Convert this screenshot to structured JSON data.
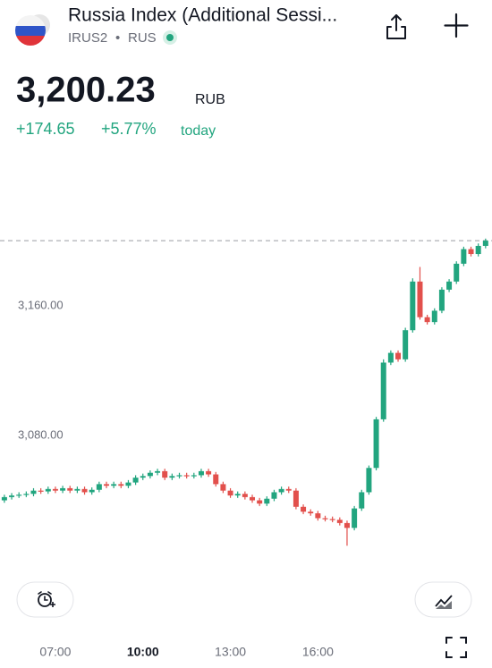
{
  "header": {
    "title": "Russia Index (Additional Sessi...",
    "symbol": "IRUS2",
    "separator": "•",
    "exchange": "RUS"
  },
  "quote": {
    "price": "3,200.23",
    "currency": "RUB",
    "change": "+174.65",
    "change_percent": "+5.77%",
    "period": "today"
  },
  "chart_data": {
    "type": "candlestick",
    "up_color": "#22a57f",
    "down_color": "#e2504c",
    "xlim": [
      5.1,
      21.97
    ],
    "ylim": [
      2995.6,
      3249.4
    ],
    "yticks": [
      {
        "value": 3160,
        "label": "3,160.00"
      },
      {
        "value": 3080,
        "label": "3,080.00"
      }
    ],
    "xticks": [
      {
        "value": 7,
        "label": "07:00"
      },
      {
        "value": 10,
        "label": "10:00"
      },
      {
        "value": 13,
        "label": "13:00"
      },
      {
        "value": 16,
        "label": "16:00"
      }
    ],
    "x": [
      5.25,
      5.5,
      5.75,
      6,
      6.25,
      6.5,
      6.75,
      7,
      7.25,
      7.5,
      7.75,
      8,
      8.25,
      8.5,
      8.75,
      9,
      9.25,
      9.5,
      9.75,
      10,
      10.25,
      10.5,
      10.75,
      11,
      11.25,
      11.5,
      11.75,
      12,
      12.25,
      12.5,
      12.75,
      13,
      13.25,
      13.5,
      13.75,
      14,
      14.25,
      14.5,
      14.75,
      15,
      15.25,
      15.5,
      15.75,
      16,
      16.25,
      16.5,
      16.75,
      17,
      17.25,
      17.5,
      17.75,
      18,
      18.25,
      18.5,
      18.75,
      19,
      19.25,
      19.5,
      19.75,
      20,
      20.25,
      20.5,
      20.75,
      21,
      21.25,
      21.5,
      21.75
    ],
    "open": [
      3040,
      3042,
      3043,
      3043.5,
      3044,
      3046,
      3045.5,
      3047,
      3046,
      3047.5,
      3046,
      3047,
      3045,
      3046.5,
      3050,
      3049,
      3050,
      3049,
      3051,
      3054,
      3055,
      3057,
      3058,
      3054,
      3055,
      3055.5,
      3055,
      3055.5,
      3058,
      3056,
      3050,
      3046,
      3043,
      3044,
      3042,
      3040,
      3038,
      3041,
      3045,
      3047,
      3046,
      3036,
      3033,
      3032,
      3029,
      3028.5,
      3028,
      3026,
      3023,
      3035,
      3045,
      3060,
      3090,
      3125,
      3131,
      3127,
      3145,
      3175,
      3153,
      3150,
      3157,
      3170,
      3175,
      3186,
      3195,
      3192,
      3197
    ],
    "high": [
      3043.5,
      3044.5,
      3045,
      3045.5,
      3047.5,
      3047.5,
      3048.5,
      3048.5,
      3049,
      3049,
      3048.5,
      3048.5,
      3048,
      3051.5,
      3051.5,
      3051.5,
      3051.5,
      3052.5,
      3055.5,
      3056.5,
      3058.5,
      3059.5,
      3059.5,
      3056.5,
      3057,
      3057,
      3057,
      3059.5,
      3059.5,
      3057.5,
      3051.5,
      3047.5,
      3045.5,
      3045.5,
      3043.5,
      3041.5,
      3042.5,
      3046.5,
      3048.5,
      3048.5,
      3047.5,
      3037.5,
      3034.5,
      3033.5,
      3030.5,
      3030,
      3029.5,
      3027.5,
      3036.5,
      3046.5,
      3061.5,
      3091.5,
      3127,
      3132.5,
      3132.5,
      3146.5,
      3177,
      3184,
      3154.5,
      3158.5,
      3171.5,
      3176.5,
      3187.5,
      3196.5,
      3196.5,
      3198.5,
      3201.5
    ],
    "low": [
      3038.5,
      3040.5,
      3041.5,
      3042,
      3042.5,
      3044,
      3044,
      3044.5,
      3044.5,
      3044.5,
      3044.5,
      3043.5,
      3043.5,
      3045,
      3047.5,
      3047.5,
      3047.5,
      3047.5,
      3049.5,
      3052.5,
      3053.5,
      3055.5,
      3052.5,
      3052.5,
      3053.5,
      3053.5,
      3053.5,
      3054,
      3054.5,
      3048.5,
      3044.5,
      3041.5,
      3041.5,
      3040.5,
      3038.5,
      3036.5,
      3036.5,
      3039.5,
      3043.5,
      3044.5,
      3034.5,
      3031.5,
      3030.5,
      3027.5,
      3027,
      3026.5,
      3024.5,
      3012,
      3021.5,
      3033.5,
      3043.5,
      3058.5,
      3088.5,
      3123.5,
      3125.5,
      3125.5,
      3143.5,
      3151.5,
      3148.5,
      3148.5,
      3155.5,
      3168.5,
      3173.5,
      3184.5,
      3190.5,
      3190.5,
      3195.5
    ],
    "close": [
      3042,
      3043,
      3043.5,
      3044,
      3046,
      3045.5,
      3047,
      3046,
      3047.5,
      3046,
      3047,
      3045,
      3046.5,
      3050,
      3049,
      3050,
      3049,
      3051,
      3054,
      3055,
      3057,
      3058,
      3054,
      3055,
      3055.5,
      3055,
      3055.5,
      3058,
      3056,
      3050,
      3046,
      3043,
      3044,
      3042,
      3040,
      3038,
      3041,
      3045,
      3047,
      3046,
      3036,
      3033,
      3032,
      3029,
      3028.5,
      3028,
      3026,
      3023,
      3035,
      3045,
      3060,
      3090,
      3125,
      3131,
      3127,
      3145,
      3175,
      3153,
      3150,
      3157,
      3170,
      3175,
      3186,
      3195,
      3192,
      3197,
      3200.23
    ]
  }
}
